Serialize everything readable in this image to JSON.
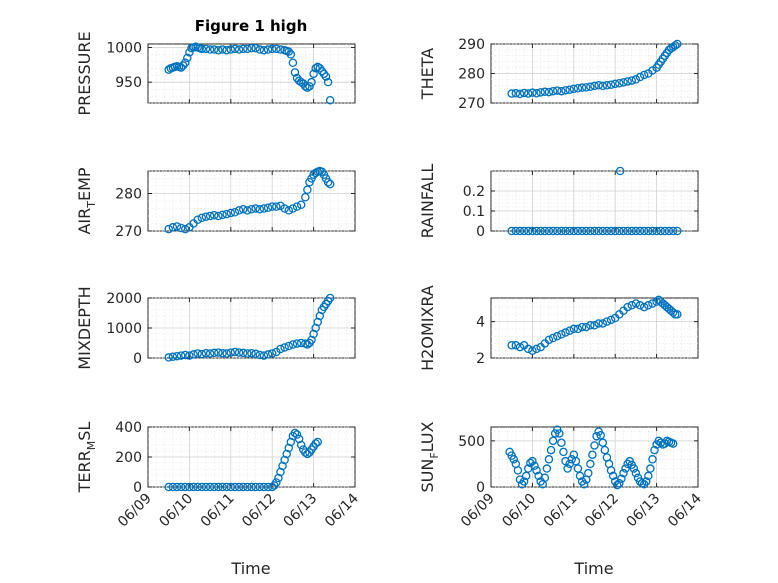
{
  "figure_title": "Figure 1 high",
  "marker_color": "#0072BD",
  "x_tick_labels": [
    "06/09",
    "06/10",
    "06/11",
    "06/12",
    "06/13",
    "06/14"
  ],
  "x_axis_label": "Time",
  "chart_data": [
    {
      "type": "scatter",
      "ylabel": "PRESSURE",
      "ylabel_parts": {
        "main": "PRESSURE",
        "sub": "",
        "rest": ""
      },
      "xlim": [
        0,
        5
      ],
      "ylim": [
        920,
        1005
      ],
      "yticks": [
        950,
        1000
      ],
      "grid": true,
      "series": [
        {
          "x": [
            0.5,
            0.55,
            0.6,
            0.65,
            0.7,
            0.75,
            0.8,
            0.85,
            0.9,
            0.95,
            1.0,
            1.05,
            1.1,
            1.15,
            1.2,
            1.25,
            1.3,
            1.4,
            1.5,
            1.6,
            1.7,
            1.8,
            1.9,
            2.0,
            2.1,
            2.2,
            2.3,
            2.4,
            2.5,
            2.6,
            2.7,
            2.8,
            2.9,
            3.0,
            3.1,
            3.2,
            3.3,
            3.35,
            3.4,
            3.45,
            3.5,
            3.55,
            3.6,
            3.65,
            3.7,
            3.75,
            3.8,
            3.85,
            3.9,
            3.95,
            4.0,
            4.05,
            4.1,
            4.15,
            4.2,
            4.25,
            4.3,
            4.35,
            4.4
          ],
          "y": [
            968,
            970,
            971,
            972,
            973,
            972,
            971,
            974,
            978,
            985,
            993,
            999,
            1000,
            1001,
            1000,
            999,
            998,
            998,
            997,
            997,
            996,
            997,
            996,
            997,
            998,
            997,
            998,
            998,
            999,
            999,
            997,
            996,
            997,
            998,
            998,
            997,
            996,
            995,
            994,
            990,
            978,
            964,
            956,
            952,
            950,
            948,
            944,
            942,
            944,
            950,
            962,
            970,
            972,
            970,
            966,
            962,
            958,
            950,
            924
          ]
        }
      ]
    },
    {
      "type": "scatter",
      "ylabel": "THETA",
      "ylabel_parts": {
        "main": "THETA",
        "sub": "",
        "rest": ""
      },
      "xlim": [
        0,
        5
      ],
      "ylim": [
        270,
        290
      ],
      "yticks": [
        270,
        280,
        290
      ],
      "grid": true,
      "series": [
        {
          "x": [
            0.5,
            0.6,
            0.7,
            0.8,
            0.9,
            1.0,
            1.1,
            1.2,
            1.3,
            1.4,
            1.5,
            1.6,
            1.7,
            1.8,
            1.9,
            2.0,
            2.1,
            2.2,
            2.3,
            2.4,
            2.5,
            2.6,
            2.7,
            2.8,
            2.9,
            3.0,
            3.1,
            3.2,
            3.3,
            3.4,
            3.5,
            3.6,
            3.7,
            3.8,
            3.9,
            4.0,
            4.05,
            4.1,
            4.15,
            4.2,
            4.25,
            4.3,
            4.35,
            4.4,
            4.45,
            4.5
          ],
          "y": [
            273.2,
            273.3,
            273.1,
            273.4,
            273.2,
            273.5,
            273.3,
            273.6,
            273.8,
            273.7,
            274.0,
            274.2,
            274.0,
            274.3,
            274.5,
            274.8,
            275.0,
            275.2,
            275.3,
            275.5,
            275.8,
            276.0,
            275.8,
            276.0,
            276.2,
            276.5,
            276.7,
            277.0,
            277.3,
            277.6,
            278.0,
            278.8,
            279.5,
            280.0,
            281.0,
            282.0,
            283.0,
            284.0,
            285.0,
            286.0,
            287.0,
            288.0,
            288.5,
            289.0,
            289.5,
            290.0
          ]
        }
      ]
    },
    {
      "type": "scatter",
      "ylabel": "AIR_TEMP",
      "ylabel_parts": {
        "main": "AIR",
        "sub": "T",
        "rest": "EMP"
      },
      "xlim": [
        0,
        5
      ],
      "ylim": [
        270,
        286
      ],
      "yticks": [
        270,
        280
      ],
      "grid": true,
      "series": [
        {
          "x": [
            0.5,
            0.6,
            0.7,
            0.8,
            0.9,
            1.0,
            1.1,
            1.2,
            1.3,
            1.4,
            1.5,
            1.6,
            1.7,
            1.8,
            1.9,
            2.0,
            2.1,
            2.2,
            2.3,
            2.4,
            2.5,
            2.6,
            2.7,
            2.8,
            2.9,
            3.0,
            3.1,
            3.2,
            3.3,
            3.4,
            3.5,
            3.6,
            3.7,
            3.8,
            3.85,
            3.9,
            3.95,
            4.0,
            4.05,
            4.1,
            4.15,
            4.2,
            4.25,
            4.3,
            4.35,
            4.4
          ],
          "y": [
            270.5,
            271.0,
            271.2,
            270.8,
            270.5,
            271.0,
            272.0,
            273.0,
            273.5,
            273.8,
            274.0,
            274.2,
            274.0,
            274.3,
            274.5,
            274.8,
            275.0,
            275.5,
            275.8,
            275.5,
            275.8,
            276.0,
            275.8,
            276.0,
            276.2,
            276.5,
            276.5,
            276.7,
            276.0,
            275.5,
            276.0,
            276.5,
            277.0,
            279.0,
            281.0,
            283.0,
            284.0,
            285.0,
            285.5,
            285.8,
            286.0,
            285.8,
            285.0,
            284.0,
            283.0,
            282.5
          ]
        }
      ]
    },
    {
      "type": "scatter",
      "ylabel": "RAINFALL",
      "ylabel_parts": {
        "main": "RAINFALL",
        "sub": "",
        "rest": ""
      },
      "xlim": [
        0,
        5
      ],
      "ylim": [
        0,
        0.3
      ],
      "yticks": [
        0,
        0.1,
        0.2
      ],
      "grid": true,
      "series": [
        {
          "x": [
            0.5,
            0.6,
            0.7,
            0.8,
            0.9,
            1.0,
            1.1,
            1.2,
            1.3,
            1.4,
            1.5,
            1.6,
            1.7,
            1.8,
            1.9,
            2.0,
            2.1,
            2.2,
            2.3,
            2.4,
            2.5,
            2.6,
            2.7,
            2.8,
            2.9,
            3.0,
            3.1,
            3.2,
            3.3,
            3.4,
            3.5,
            3.6,
            3.7,
            3.8,
            3.9,
            4.0,
            4.1,
            4.2,
            4.3,
            4.4,
            4.5,
            3.12
          ],
          "y": [
            0,
            0,
            0,
            0,
            0,
            0,
            0,
            0,
            0,
            0,
            0,
            0,
            0,
            0,
            0,
            0,
            0,
            0,
            0,
            0,
            0,
            0,
            0,
            0,
            0,
            0,
            0,
            0,
            0,
            0,
            0,
            0,
            0,
            0,
            0,
            0,
            0,
            0,
            0,
            0,
            0,
            0.3
          ]
        }
      ]
    },
    {
      "type": "scatter",
      "ylabel": "MIXDEPTH",
      "ylabel_parts": {
        "main": "MIXDEPTH",
        "sub": "",
        "rest": ""
      },
      "xlim": [
        0,
        5
      ],
      "ylim": [
        0,
        2000
      ],
      "yticks": [
        0,
        1000,
        2000
      ],
      "grid": true,
      "series": [
        {
          "x": [
            0.5,
            0.6,
            0.7,
            0.8,
            0.9,
            1.0,
            1.1,
            1.2,
            1.3,
            1.4,
            1.5,
            1.6,
            1.7,
            1.8,
            1.9,
            2.0,
            2.1,
            2.2,
            2.3,
            2.4,
            2.5,
            2.6,
            2.7,
            2.8,
            2.9,
            3.0,
            3.1,
            3.2,
            3.3,
            3.4,
            3.5,
            3.6,
            3.7,
            3.8,
            3.85,
            3.9,
            3.95,
            4.0,
            4.05,
            4.1,
            4.15,
            4.2,
            4.25,
            4.3,
            4.35,
            4.4
          ],
          "y": [
            20,
            40,
            60,
            80,
            100,
            80,
            120,
            150,
            130,
            160,
            150,
            170,
            180,
            160,
            150,
            180,
            200,
            180,
            170,
            150,
            160,
            140,
            100,
            80,
            120,
            150,
            200,
            300,
            350,
            400,
            450,
            480,
            500,
            480,
            450,
            500,
            600,
            800,
            1000,
            1200,
            1400,
            1600,
            1700,
            1800,
            1900,
            2000
          ]
        }
      ]
    },
    {
      "type": "scatter",
      "ylabel": "H2OMIXRA",
      "ylabel_parts": {
        "main": "H2OMIXRA",
        "sub": "",
        "rest": ""
      },
      "xlim": [
        0,
        5
      ],
      "ylim": [
        2,
        5.3
      ],
      "yticks": [
        2,
        4
      ],
      "grid": true,
      "series": [
        {
          "x": [
            0.5,
            0.6,
            0.7,
            0.8,
            0.9,
            1.0,
            1.1,
            1.2,
            1.3,
            1.4,
            1.5,
            1.6,
            1.7,
            1.8,
            1.9,
            2.0,
            2.1,
            2.2,
            2.3,
            2.4,
            2.5,
            2.6,
            2.7,
            2.8,
            2.9,
            3.0,
            3.1,
            3.2,
            3.3,
            3.4,
            3.5,
            3.6,
            3.7,
            3.8,
            3.9,
            4.0,
            4.05,
            4.1,
            4.15,
            4.2,
            4.25,
            4.3,
            4.35,
            4.4,
            4.45,
            4.5
          ],
          "y": [
            2.7,
            2.7,
            2.6,
            2.7,
            2.5,
            2.4,
            2.5,
            2.6,
            2.8,
            3.0,
            3.1,
            3.2,
            3.3,
            3.4,
            3.5,
            3.6,
            3.6,
            3.7,
            3.7,
            3.8,
            3.8,
            3.9,
            3.9,
            4.0,
            4.1,
            4.2,
            4.4,
            4.6,
            4.8,
            4.9,
            5.0,
            4.9,
            4.8,
            4.9,
            5.0,
            5.1,
            5.2,
            5.1,
            5.0,
            4.9,
            4.8,
            4.7,
            4.6,
            4.5,
            4.4,
            4.4
          ]
        }
      ]
    },
    {
      "type": "scatter",
      "ylabel": "TERR_MSL",
      "ylabel_parts": {
        "main": "TERR",
        "sub": "M",
        "rest": "SL"
      },
      "xlim": [
        0,
        5
      ],
      "ylim": [
        0,
        400
      ],
      "yticks": [
        0,
        200,
        400
      ],
      "grid": true,
      "series": [
        {
          "x": [
            0.5,
            0.6,
            0.7,
            0.8,
            0.9,
            1.0,
            1.1,
            1.2,
            1.3,
            1.4,
            1.5,
            1.6,
            1.7,
            1.8,
            1.9,
            2.0,
            2.1,
            2.2,
            2.3,
            2.4,
            2.5,
            2.6,
            2.7,
            2.8,
            2.9,
            3.0,
            3.05,
            3.1,
            3.15,
            3.2,
            3.25,
            3.3,
            3.35,
            3.4,
            3.45,
            3.5,
            3.55,
            3.6,
            3.65,
            3.7,
            3.75,
            3.8,
            3.85,
            3.9,
            3.95,
            4.0,
            4.05,
            4.1
          ],
          "y": [
            0,
            0,
            0,
            0,
            0,
            0,
            0,
            0,
            0,
            0,
            0,
            0,
            0,
            0,
            0,
            0,
            0,
            0,
            0,
            0,
            0,
            0,
            0,
            0,
            0,
            0,
            10,
            30,
            60,
            100,
            140,
            180,
            220,
            260,
            300,
            340,
            360,
            350,
            320,
            280,
            250,
            230,
            220,
            230,
            250,
            270,
            290,
            300
          ]
        }
      ]
    },
    {
      "type": "scatter",
      "ylabel": "SUN_FLUX",
      "ylabel_parts": {
        "main": "SUN",
        "sub": "F",
        "rest": "LUX"
      },
      "xlim": [
        0,
        5
      ],
      "ylim": [
        0,
        650
      ],
      "yticks": [
        0,
        500
      ],
      "grid": true,
      "series": [
        {
          "x": [
            0.45,
            0.5,
            0.55,
            0.6,
            0.65,
            0.7,
            0.75,
            0.8,
            0.85,
            0.9,
            0.95,
            1.0,
            1.05,
            1.1,
            1.15,
            1.2,
            1.25,
            1.3,
            1.35,
            1.4,
            1.45,
            1.5,
            1.55,
            1.6,
            1.65,
            1.7,
            1.75,
            1.8,
            1.85,
            1.9,
            1.95,
            2.0,
            2.05,
            2.1,
            2.15,
            2.2,
            2.25,
            2.3,
            2.35,
            2.4,
            2.45,
            2.5,
            2.55,
            2.6,
            2.65,
            2.7,
            2.75,
            2.8,
            2.85,
            2.9,
            2.95,
            3.0,
            3.05,
            3.1,
            3.15,
            3.2,
            3.25,
            3.3,
            3.35,
            3.4,
            3.45,
            3.5,
            3.55,
            3.6,
            3.65,
            3.7,
            3.75,
            3.8,
            3.85,
            3.9,
            3.95,
            4.0,
            4.05,
            4.1,
            4.15,
            4.2,
            4.25,
            4.3,
            4.35,
            4.4
          ],
          "y": [
            380,
            340,
            300,
            250,
            180,
            80,
            30,
            60,
            120,
            200,
            260,
            280,
            230,
            180,
            120,
            60,
            30,
            100,
            200,
            300,
            400,
            500,
            580,
            620,
            580,
            480,
            380,
            280,
            200,
            250,
            300,
            350,
            280,
            200,
            120,
            60,
            30,
            80,
            150,
            250,
            350,
            450,
            550,
            600,
            560,
            480,
            400,
            320,
            250,
            180,
            120,
            60,
            20,
            40,
            90,
            150,
            200,
            250,
            280,
            240,
            200,
            150,
            100,
            60,
            40,
            30,
            60,
            120,
            200,
            300,
            400,
            460,
            500,
            480,
            460,
            470,
            500,
            490,
            480,
            470
          ]
        }
      ]
    }
  ]
}
